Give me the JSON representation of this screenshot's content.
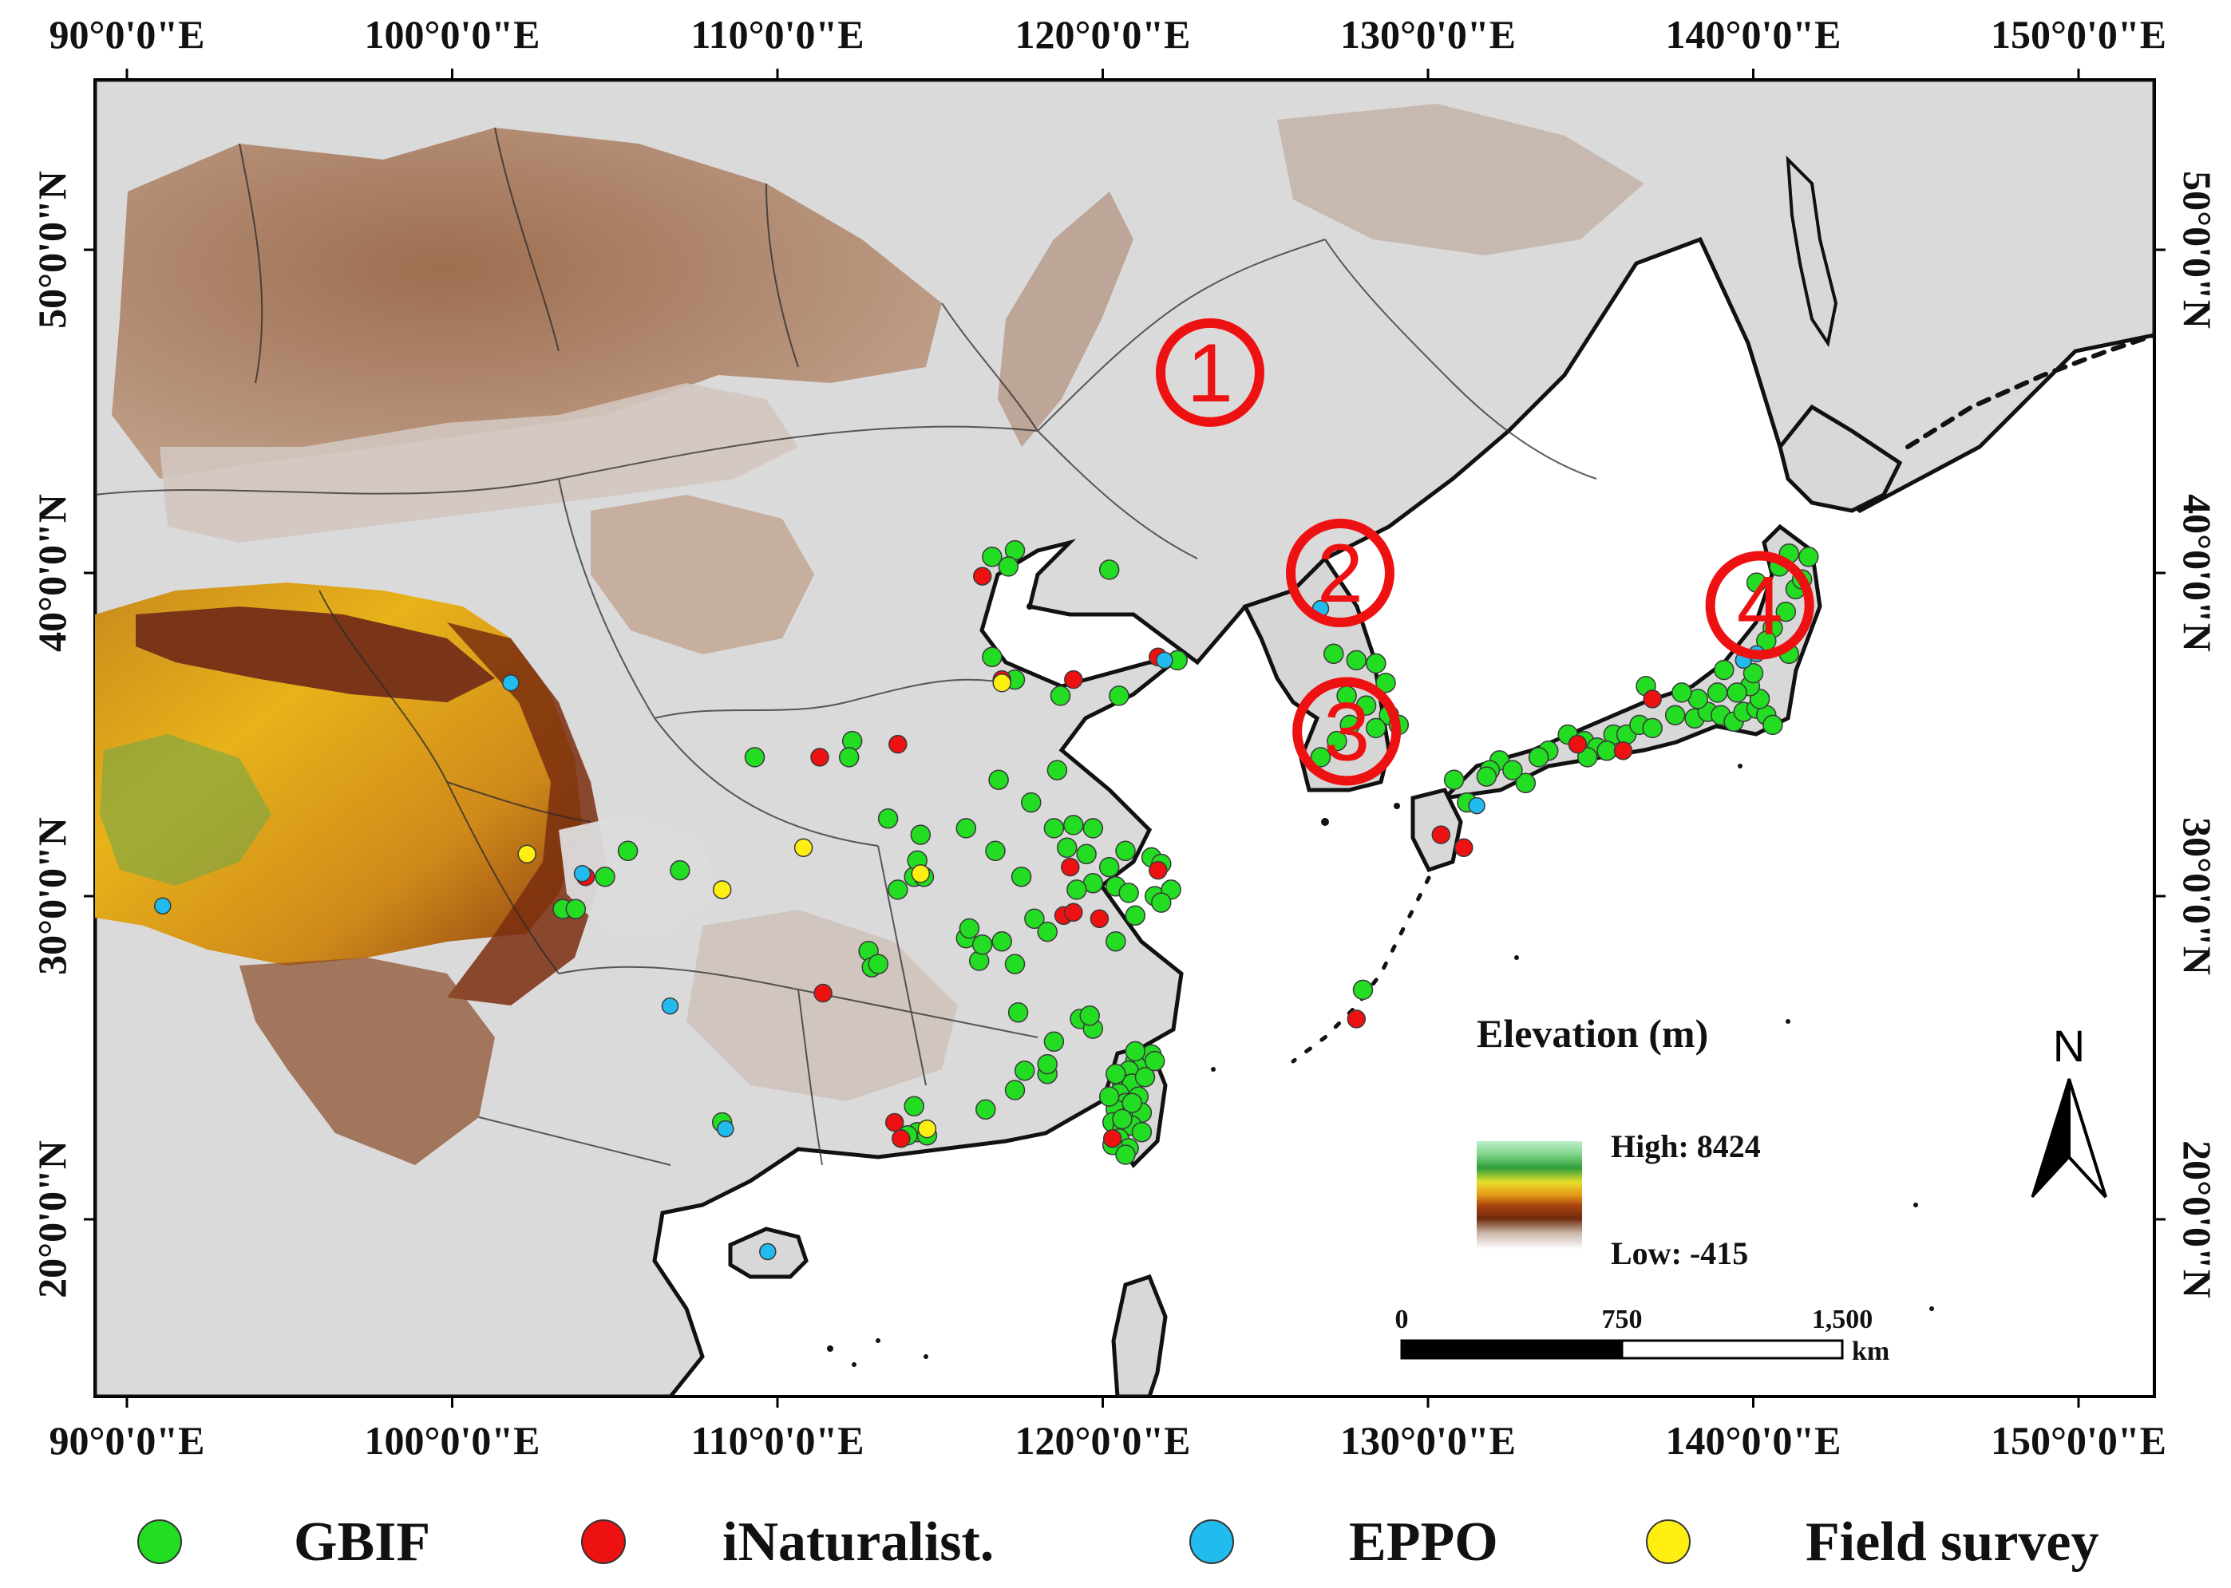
{
  "axes": {
    "top_labels": [
      "90°0'0\"E",
      "100°0'0\"E",
      "110°0'0\"E",
      "120°0'0\"E",
      "130°0'0\"E",
      "140°0'0\"E",
      "150°0'0\"E"
    ],
    "bottom_labels": [
      "90°0'0\"E",
      "100°0'0\"E",
      "110°0'0\"E",
      "120°0'0\"E",
      "130°0'0\"E",
      "140°0'0\"E",
      "150°0'0\"E"
    ],
    "lon_values": [
      90,
      100,
      110,
      120,
      130,
      140,
      150
    ],
    "left_labels": [
      "50°0'0\"N",
      "40°0'0\"N",
      "30°0'0\"N",
      "20°0'0\"N"
    ],
    "right_labels": [
      "50°0'0\"N",
      "40°0'0\"N",
      "30°0'0\"N",
      "20°0'0\"N"
    ],
    "lat_values": [
      50,
      40,
      30,
      20
    ]
  },
  "regions": [
    {
      "label": "1",
      "lon": 123.3,
      "lat": 46.2
    },
    {
      "label": "2",
      "lon": 127.3,
      "lat": 40.0
    },
    {
      "label": "3",
      "lon": 127.5,
      "lat": 35.1
    },
    {
      "label": "4",
      "lon": 140.2,
      "lat": 39.0
    }
  ],
  "elevation_legend": {
    "title": "Elevation (m)",
    "high_label": "High: 8424",
    "low_label": "Low: -415"
  },
  "scale_bar": {
    "ticks": [
      "0",
      "750",
      "1,500"
    ],
    "unit": "km"
  },
  "north_arrow": {
    "label": "N",
    "icon": "north-arrow-icon"
  },
  "legend": [
    {
      "label": "GBIF",
      "color": "#22dd22"
    },
    {
      "label": "iNaturalist.",
      "color": "#ee1111"
    },
    {
      "label": "EPPO",
      "color": "#22bbee"
    },
    {
      "label": "Field survey",
      "color": "#ffee11"
    }
  ],
  "colors": {
    "gbif": "#22dd22",
    "inat": "#ee1111",
    "eppo": "#22bbee",
    "field": "#ffee11",
    "region_marker": "#ee1111",
    "land": "#dedede",
    "sea": "#ffffff"
  },
  "occurrences": {
    "gbif": [
      [
        117.3,
        40.7
      ],
      [
        116.6,
        40.5
      ],
      [
        117.1,
        40.2
      ],
      [
        120.2,
        40.1
      ],
      [
        116.6,
        37.4
      ],
      [
        117.3,
        36.7
      ],
      [
        118.7,
        36.2
      ],
      [
        120.5,
        36.2
      ],
      [
        122.3,
        37.3
      ],
      [
        109.3,
        34.3
      ],
      [
        112.3,
        34.8
      ],
      [
        112.2,
        34.3
      ],
      [
        116.8,
        33.6
      ],
      [
        118.6,
        33.9
      ],
      [
        117.8,
        32.9
      ],
      [
        118.5,
        32.1
      ],
      [
        119.1,
        32.2
      ],
      [
        119.7,
        32.1
      ],
      [
        118.9,
        31.5
      ],
      [
        119.5,
        31.3
      ],
      [
        120.7,
        31.4
      ],
      [
        121.5,
        31.2
      ],
      [
        121.8,
        31.0
      ],
      [
        120.2,
        30.9
      ],
      [
        119.7,
        30.4
      ],
      [
        120.4,
        30.3
      ],
      [
        119.2,
        30.2
      ],
      [
        120.8,
        30.1
      ],
      [
        121.6,
        30.0
      ],
      [
        122.1,
        30.2
      ],
      [
        121.8,
        29.8
      ],
      [
        121.0,
        29.4
      ],
      [
        120.4,
        28.6
      ],
      [
        119.3,
        26.2
      ],
      [
        119.7,
        25.9
      ],
      [
        119.6,
        26.3
      ],
      [
        118.3,
        24.5
      ],
      [
        117.6,
        24.6
      ],
      [
        117.3,
        24.0
      ],
      [
        116.4,
        23.4
      ],
      [
        114.3,
        22.7
      ],
      [
        114.6,
        22.6
      ],
      [
        114.2,
        23.5
      ],
      [
        114.0,
        22.6
      ],
      [
        115.8,
        32.1
      ],
      [
        116.7,
        31.4
      ],
      [
        114.4,
        31.9
      ],
      [
        114.2,
        30.6
      ],
      [
        114.5,
        30.6
      ],
      [
        117.5,
        30.6
      ],
      [
        116.9,
        28.6
      ],
      [
        117.9,
        29.3
      ],
      [
        115.8,
        28.7
      ],
      [
        116.2,
        28.0
      ],
      [
        117.3,
        27.9
      ],
      [
        118.5,
        25.5
      ],
      [
        118.3,
        24.8
      ],
      [
        117.4,
        26.4
      ],
      [
        112.8,
        28.3
      ],
      [
        112.9,
        27.8
      ],
      [
        113.1,
        27.9
      ],
      [
        105.4,
        31.4
      ],
      [
        104.7,
        30.6
      ],
      [
        103.4,
        29.6
      ],
      [
        103.8,
        29.6
      ],
      [
        107.0,
        30.8
      ],
      [
        113.4,
        32.4
      ],
      [
        114.3,
        31.1
      ],
      [
        113.7,
        30.2
      ],
      [
        115.9,
        29.0
      ],
      [
        116.3,
        28.5
      ],
      [
        118.3,
        28.9
      ],
      [
        108.3,
        23.0
      ],
      [
        121.0,
        24.9
      ],
      [
        121.2,
        24.7
      ],
      [
        121.5,
        25.1
      ],
      [
        120.8,
        24.6
      ],
      [
        120.6,
        24.2
      ],
      [
        120.9,
        24.2
      ],
      [
        121.3,
        24.4
      ],
      [
        120.5,
        23.9
      ],
      [
        120.7,
        23.6
      ],
      [
        121.1,
        23.8
      ],
      [
        120.4,
        23.4
      ],
      [
        120.8,
        23.2
      ],
      [
        121.2,
        23.3
      ],
      [
        120.3,
        23.0
      ],
      [
        120.6,
        22.8
      ],
      [
        120.9,
        22.9
      ],
      [
        120.5,
        22.5
      ],
      [
        120.8,
        22.2
      ],
      [
        120.4,
        24.5
      ],
      [
        121.0,
        25.2
      ],
      [
        121.6,
        24.9
      ],
      [
        120.2,
        23.8
      ],
      [
        120.9,
        23.6
      ],
      [
        120.6,
        23.1
      ],
      [
        121.2,
        22.7
      ],
      [
        120.3,
        22.3
      ],
      [
        120.7,
        22.0
      ],
      [
        127.1,
        37.5
      ],
      [
        127.8,
        37.3
      ],
      [
        128.4,
        37.2
      ],
      [
        128.7,
        36.6
      ],
      [
        127.5,
        36.2
      ],
      [
        128.1,
        35.9
      ],
      [
        128.8,
        35.6
      ],
      [
        127.2,
        34.8
      ],
      [
        126.7,
        34.3
      ],
      [
        127.6,
        35.3
      ],
      [
        128.4,
        35.2
      ],
      [
        129.1,
        35.3
      ],
      [
        130.8,
        33.6
      ],
      [
        131.2,
        32.9
      ],
      [
        132.2,
        34.2
      ],
      [
        133.0,
        33.5
      ],
      [
        132.6,
        33.9
      ],
      [
        133.7,
        34.5
      ],
      [
        134.3,
        35.0
      ],
      [
        134.8,
        34.8
      ],
      [
        135.2,
        34.6
      ],
      [
        135.7,
        35.0
      ],
      [
        136.1,
        35.0
      ],
      [
        136.5,
        35.3
      ],
      [
        136.9,
        35.2
      ],
      [
        135.5,
        34.5
      ],
      [
        134.9,
        34.3
      ],
      [
        137.6,
        35.6
      ],
      [
        138.2,
        35.5
      ],
      [
        138.6,
        35.7
      ],
      [
        139.0,
        35.6
      ],
      [
        139.4,
        35.4
      ],
      [
        139.7,
        35.7
      ],
      [
        140.1,
        35.8
      ],
      [
        140.4,
        35.6
      ],
      [
        140.2,
        36.1
      ],
      [
        139.9,
        36.5
      ],
      [
        139.5,
        36.3
      ],
      [
        138.9,
        36.3
      ],
      [
        139.1,
        37.0
      ],
      [
        140.0,
        36.9
      ],
      [
        140.6,
        35.3
      ],
      [
        138.3,
        36.1
      ],
      [
        137.8,
        36.3
      ],
      [
        140.6,
        38.3
      ],
      [
        141.0,
        38.8
      ],
      [
        141.3,
        39.5
      ],
      [
        140.8,
        40.2
      ],
      [
        141.1,
        40.6
      ],
      [
        141.5,
        39.8
      ],
      [
        140.1,
        39.7
      ],
      [
        131.9,
        33.9
      ],
      [
        133.4,
        34.3
      ],
      [
        136.7,
        36.5
      ],
      [
        141.7,
        40.5
      ],
      [
        141.1,
        37.5
      ],
      [
        140.4,
        37.9
      ],
      [
        128.0,
        27.1
      ],
      [
        131.8,
        33.7
      ]
    ],
    "inat": [
      [
        116.3,
        39.9
      ],
      [
        121.7,
        37.4
      ],
      [
        116.9,
        36.7
      ],
      [
        119.1,
        36.7
      ],
      [
        111.3,
        34.3
      ],
      [
        113.7,
        34.7
      ],
      [
        119.0,
        30.9
      ],
      [
        118.8,
        29.4
      ],
      [
        119.1,
        29.5
      ],
      [
        119.9,
        29.3
      ],
      [
        111.4,
        27.0
      ],
      [
        113.6,
        23.0
      ],
      [
        113.8,
        22.5
      ],
      [
        120.3,
        22.5
      ],
      [
        121.7,
        30.8
      ],
      [
        104.1,
        30.6
      ],
      [
        134.6,
        34.7
      ],
      [
        136.0,
        34.5
      ],
      [
        136.9,
        36.1
      ],
      [
        130.4,
        31.9
      ],
      [
        131.1,
        31.5
      ],
      [
        127.8,
        26.2
      ]
    ],
    "eppo": [
      [
        101.8,
        36.6
      ],
      [
        104.0,
        30.7
      ],
      [
        91.1,
        29.7
      ],
      [
        106.7,
        26.6
      ],
      [
        108.4,
        22.8
      ],
      [
        109.7,
        19.0
      ],
      [
        126.7,
        38.9
      ],
      [
        131.5,
        32.8
      ],
      [
        139.7,
        37.3
      ],
      [
        121.9,
        37.3
      ],
      [
        140.1,
        37.5
      ]
    ],
    "field": [
      [
        102.3,
        31.3
      ],
      [
        108.3,
        30.2
      ],
      [
        110.8,
        31.5
      ],
      [
        114.4,
        30.7
      ],
      [
        116.9,
        36.6
      ],
      [
        114.6,
        22.8
      ]
    ]
  }
}
